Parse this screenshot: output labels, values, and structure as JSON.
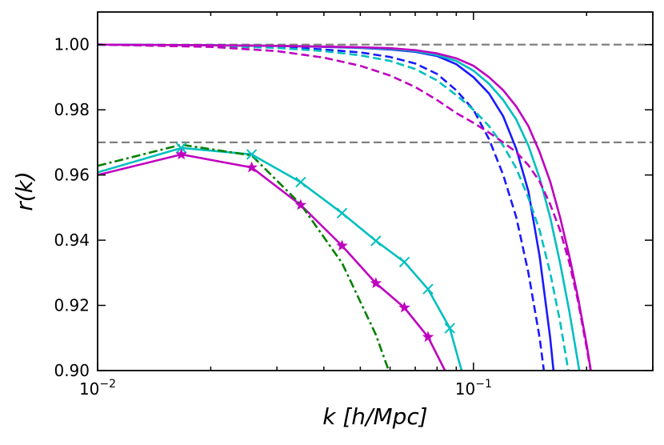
{
  "chart_data": {
    "type": "line",
    "title": "",
    "xlabel": "k [h/Mpc]",
    "ylabel": "r(k)",
    "xscale": "log",
    "xlim": [
      0.01,
      0.3
    ],
    "ylim": [
      0.9,
      1.01
    ],
    "grid": false,
    "x_ticks": [
      {
        "value": 0.01,
        "base": "10",
        "exp": "−2"
      },
      {
        "value": 0.1,
        "base": "10",
        "exp": "−1"
      }
    ],
    "y_ticks": [
      {
        "value": 0.9,
        "label": "0.90"
      },
      {
        "value": 0.92,
        "label": "0.92"
      },
      {
        "value": 0.94,
        "label": "0.94"
      },
      {
        "value": 0.96,
        "label": "0.96"
      },
      {
        "value": 0.98,
        "label": "0.98"
      },
      {
        "value": 1.0,
        "label": "1.00"
      }
    ],
    "reference_lines": [
      {
        "y": 1.0,
        "color": "#808080",
        "style": "dashed"
      },
      {
        "y": 0.97,
        "color": "#808080",
        "style": "dashed"
      }
    ],
    "series": [
      {
        "color": "#1a1aff",
        "style": "solid",
        "marker": "none",
        "x": [
          0.01,
          0.02,
          0.03,
          0.04,
          0.05,
          0.06,
          0.07,
          0.08,
          0.09,
          0.1,
          0.11,
          0.12,
          0.13,
          0.14,
          0.15,
          0.16,
          0.17
        ],
        "y": [
          1.0,
          0.9998,
          0.9996,
          0.9993,
          0.999,
          0.9985,
          0.9978,
          0.9965,
          0.994,
          0.99,
          0.985,
          0.978,
          0.968,
          0.955,
          0.935,
          0.91,
          0.88
        ]
      },
      {
        "color": "#1a1aff",
        "style": "dashed",
        "marker": "none",
        "x": [
          0.01,
          0.02,
          0.03,
          0.04,
          0.05,
          0.06,
          0.07,
          0.08,
          0.09,
          0.1,
          0.11,
          0.12,
          0.13,
          0.14,
          0.15,
          0.16
        ],
        "y": [
          1.0,
          0.9997,
          0.9992,
          0.9985,
          0.9976,
          0.9962,
          0.9942,
          0.991,
          0.986,
          0.98,
          0.971,
          0.96,
          0.947,
          0.93,
          0.91,
          0.885
        ]
      },
      {
        "color": "#00bfbf",
        "style": "solid",
        "marker": "none",
        "x": [
          0.01,
          0.02,
          0.03,
          0.04,
          0.05,
          0.06,
          0.07,
          0.08,
          0.09,
          0.1,
          0.11,
          0.12,
          0.13,
          0.14,
          0.15,
          0.16,
          0.17,
          0.18,
          0.19,
          0.2
        ],
        "y": [
          1.0,
          0.9998,
          0.9996,
          0.9994,
          0.9991,
          0.9987,
          0.998,
          0.9968,
          0.995,
          0.992,
          0.988,
          0.983,
          0.977,
          0.969,
          0.959,
          0.947,
          0.933,
          0.918,
          0.902,
          0.885
        ]
      },
      {
        "color": "#00bfbf",
        "style": "dashed",
        "marker": "none",
        "x": [
          0.01,
          0.02,
          0.03,
          0.04,
          0.05,
          0.06,
          0.07,
          0.08,
          0.09,
          0.1,
          0.11,
          0.12,
          0.13,
          0.14,
          0.15,
          0.16,
          0.17,
          0.18,
          0.19
        ],
        "y": [
          1.0,
          0.9996,
          0.999,
          0.998,
          0.9967,
          0.995,
          0.9925,
          0.989,
          0.9845,
          0.98,
          0.975,
          0.969,
          0.962,
          0.953,
          0.943,
          0.93,
          0.915,
          0.898,
          0.88
        ]
      },
      {
        "color": "#bf00bf",
        "style": "solid",
        "marker": "none",
        "x": [
          0.01,
          0.02,
          0.03,
          0.04,
          0.05,
          0.06,
          0.07,
          0.08,
          0.09,
          0.1,
          0.11,
          0.12,
          0.13,
          0.14,
          0.15,
          0.16,
          0.17,
          0.18,
          0.19,
          0.2,
          0.21,
          0.22
        ],
        "y": [
          1.0,
          0.9998,
          0.9996,
          0.9994,
          0.9992,
          0.9989,
          0.9983,
          0.9973,
          0.9958,
          0.9935,
          0.99,
          0.986,
          0.981,
          0.975,
          0.967,
          0.958,
          0.947,
          0.935,
          0.922,
          0.908,
          0.893,
          0.877
        ]
      },
      {
        "color": "#bf00bf",
        "style": "dashed",
        "marker": "none",
        "x": [
          0.01,
          0.02,
          0.03,
          0.04,
          0.05,
          0.06,
          0.07,
          0.08,
          0.09,
          0.1,
          0.11,
          0.12,
          0.13,
          0.14,
          0.15,
          0.16,
          0.17,
          0.18,
          0.19,
          0.2,
          0.21
        ],
        "y": [
          1.0,
          0.9993,
          0.998,
          0.996,
          0.9935,
          0.9905,
          0.987,
          0.983,
          0.979,
          0.976,
          0.973,
          0.97,
          0.967,
          0.963,
          0.958,
          0.951,
          0.943,
          0.933,
          0.921,
          0.907,
          0.893
        ]
      },
      {
        "color": "#00bfbf",
        "style": "solid",
        "marker": "x",
        "x": [
          0.01,
          0.0167,
          0.0257,
          0.0347,
          0.0447,
          0.055,
          0.0655,
          0.0757,
          0.0865,
          0.093
        ],
        "y": [
          0.9608,
          0.9683,
          0.9663,
          0.9578,
          0.9483,
          0.9398,
          0.9333,
          0.925,
          0.913,
          0.9
        ]
      },
      {
        "color": "#bf00bf",
        "style": "solid",
        "marker": "star",
        "x": [
          0.01,
          0.0167,
          0.0257,
          0.0347,
          0.0447,
          0.055,
          0.0655,
          0.0757,
          0.084
        ],
        "y": [
          0.96,
          0.9663,
          0.9623,
          0.9508,
          0.9383,
          0.9268,
          0.9193,
          0.9103,
          0.9
        ]
      },
      {
        "color": "#008000",
        "style": "dashdot",
        "marker": "none",
        "x": [
          0.01,
          0.0167,
          0.0257,
          0.0347,
          0.0447,
          0.055,
          0.0595
        ],
        "y": [
          0.9628,
          0.9693,
          0.966,
          0.951,
          0.933,
          0.911,
          0.9
        ]
      }
    ]
  }
}
